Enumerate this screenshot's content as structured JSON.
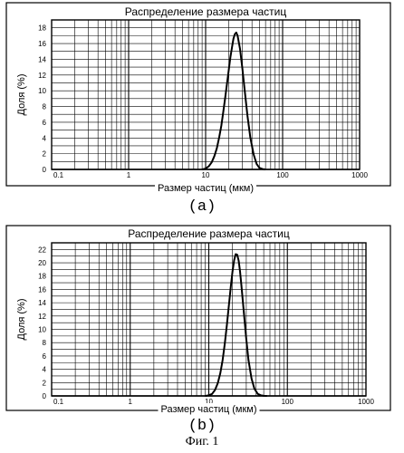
{
  "figure_caption": "Фиг. 1",
  "chart_data": [
    {
      "type": "line",
      "panel_label": "(a)",
      "title": "Распределение размера частиц",
      "xlabel": "Размер частиц (мкм)",
      "ylabel": "Доля (%)",
      "xscale": "log",
      "xlim": [
        0.1,
        1000
      ],
      "ylim": [
        0,
        19
      ],
      "x_ticks": [
        "0.1",
        "1",
        "10",
        "100",
        "1000"
      ],
      "y_ticks": [
        "0",
        "2",
        "4",
        "6",
        "8",
        "10",
        "12",
        "14",
        "16",
        "18"
      ],
      "grid": true,
      "series": [
        {
          "x": [
            9,
            10,
            11,
            12,
            13,
            14,
            15,
            16,
            17,
            18,
            19,
            20,
            21,
            22,
            23,
            24,
            25,
            26,
            28,
            30,
            32,
            35,
            38,
            42,
            46,
            50,
            55,
            60
          ],
          "y": [
            0,
            0.1,
            0.4,
            0.9,
            1.7,
            2.7,
            4.1,
            5.6,
            7.4,
            9.2,
            11.0,
            12.7,
            14.3,
            15.5,
            16.6,
            17.2,
            17.4,
            17.0,
            15.3,
            12.8,
            10.3,
            6.8,
            4.1,
            1.9,
            0.7,
            0.2,
            0.05,
            0
          ]
        }
      ]
    },
    {
      "type": "line",
      "panel_label": "(b)",
      "title": "Распределение размера частиц",
      "xlabel": "Размер частиц (мкм)",
      "ylabel": "Доля (%)",
      "xscale": "log",
      "xlim": [
        0.1,
        1000
      ],
      "ylim": [
        0,
        23
      ],
      "x_ticks": [
        "0.1",
        "1",
        "10",
        "100",
        "1000"
      ],
      "y_ticks": [
        "0",
        "2",
        "4",
        "6",
        "8",
        "10",
        "12",
        "14",
        "16",
        "18",
        "20",
        "22"
      ],
      "grid": true,
      "series": [
        {
          "x": [
            9,
            10,
            11,
            12,
            13,
            14,
            15,
            16,
            17,
            18,
            19,
            20,
            21,
            22,
            23,
            24,
            25,
            26,
            28,
            30,
            32,
            35,
            38,
            42,
            46,
            50,
            55
          ],
          "y": [
            0,
            0.1,
            0.3,
            0.9,
            1.9,
            3.4,
            5.4,
            7.9,
            10.7,
            13.5,
            16.3,
            18.6,
            20.4,
            21.3,
            21.2,
            20.3,
            18.7,
            16.6,
            12.4,
            8.5,
            5.4,
            2.6,
            1.1,
            0.3,
            0.1,
            0.02,
            0
          ]
        }
      ]
    }
  ]
}
